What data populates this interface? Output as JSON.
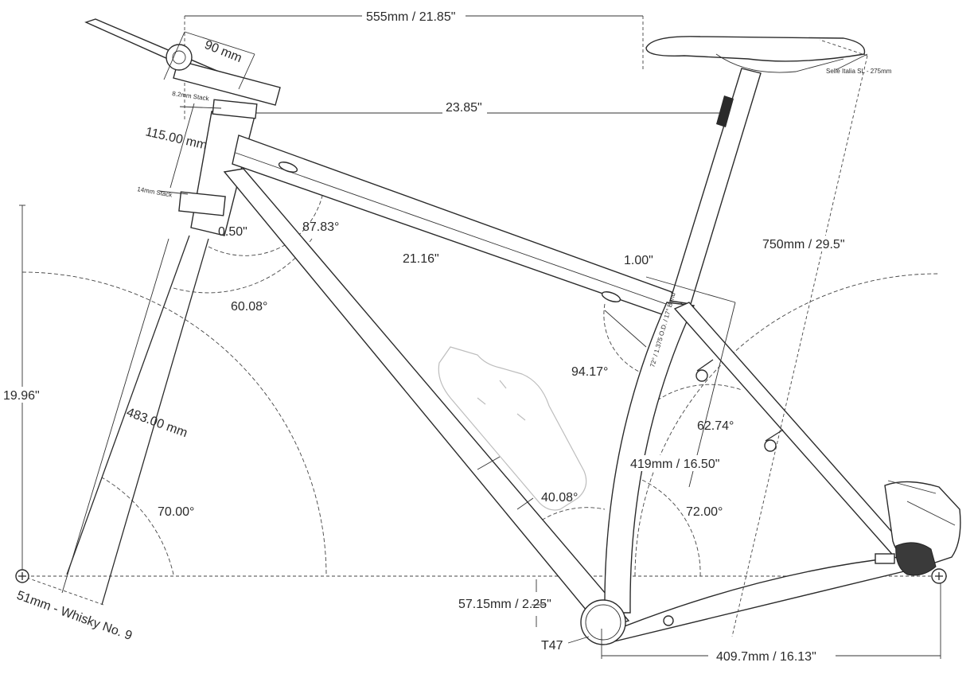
{
  "diagram": {
    "labels": {
      "reach": "555mm / 21.85\"",
      "stem_length": "90 mm",
      "stem_stack": "8.2mm Stack",
      "effective_top_tube": "23.85\"",
      "head_tube_length": "115.00 mm",
      "headset_stack": "14mm Stack",
      "head_tube_offset": "0.50\"",
      "head_tube_top_angle": "87.83°",
      "top_tube_length": "21.16\"",
      "head_tube_downtube_angle": "60.08°",
      "stack": "19.96\"",
      "fork_length": "483.00 mm",
      "head_angle": "70.00°",
      "tire": "51mm - Whisky No. 9",
      "saddle": "Selle Italia SL - 275mm",
      "saddle_height": "750mm / 29.5\"",
      "top_tube_seat_offset": "1.00\"",
      "seat_tube_spec": "72° / 1.375 O.D. / 17° Bend",
      "seat_top_angle": "94.17°",
      "seatstay_angle": "62.74°",
      "seat_tube_length": "419mm / 16.50\"",
      "downtube_seattube_angle": "40.08°",
      "seat_angle": "72.00°",
      "bb_drop": "57.15mm / 2.25\"",
      "bottom_bracket": "T47",
      "chainstay": "409.7mm / 16.13\""
    },
    "colors": {
      "line": "#2b2b2b",
      "bottle_outline": "#bdbdbd",
      "background": "#ffffff"
    },
    "icons": [
      "bike-logo-icon",
      "water-bottle-icon",
      "brake-caliper-icon",
      "dropout-axle-icon"
    ]
  }
}
